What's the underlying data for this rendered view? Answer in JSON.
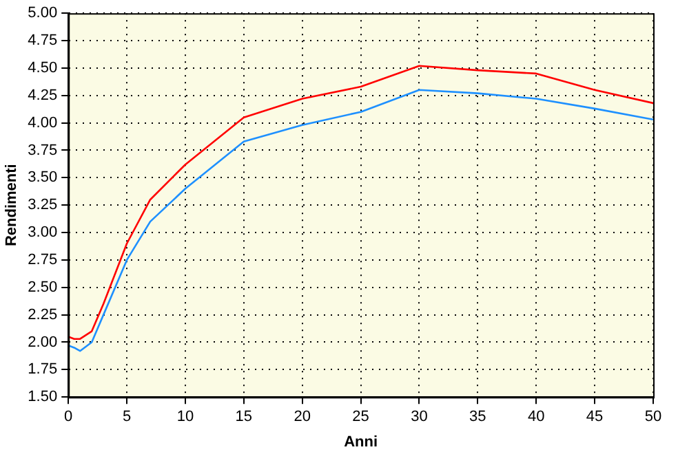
{
  "chart_data": {
    "type": "line",
    "xlabel": "Anni",
    "ylabel": "Rendimenti",
    "x": [
      0,
      0.5,
      1,
      2,
      3,
      5,
      7,
      10,
      15,
      20,
      25,
      30,
      35,
      40,
      45,
      50
    ],
    "series": [
      {
        "color": "#ff0000",
        "values": [
          2.05,
          2.03,
          2.03,
          2.1,
          2.35,
          2.9,
          3.3,
          3.62,
          4.05,
          4.22,
          4.33,
          4.52,
          4.48,
          4.45,
          4.3,
          4.18
        ]
      },
      {
        "color": "#1e90ff",
        "values": [
          1.97,
          1.95,
          1.92,
          2.0,
          2.25,
          2.75,
          3.1,
          3.4,
          3.83,
          3.98,
          4.1,
          4.3,
          4.27,
          4.22,
          4.13,
          4.03
        ]
      }
    ],
    "xlim": [
      0,
      50
    ],
    "xticks": [
      0,
      5,
      10,
      15,
      20,
      25,
      30,
      35,
      40,
      45,
      50
    ],
    "ylim": [
      1.5,
      5
    ],
    "yticks": [
      {
        "value": 1.5,
        "label": "1.50"
      },
      1.75,
      {
        "value": 2,
        "label": "2.00"
      },
      2.25,
      {
        "value": 2.5,
        "label": "2.50"
      },
      2.75,
      {
        "value": 3,
        "label": "3.00"
      },
      3.25,
      {
        "value": 3.5,
        "label": "3.50"
      },
      3.75,
      {
        "value": 4,
        "label": "4.00"
      },
      4.25,
      {
        "value": 4.5,
        "label": "4.50"
      },
      4.75,
      {
        "value": 5,
        "label": "5.00"
      }
    ],
    "grid": true,
    "legend": false,
    "marker": "none",
    "line_style": "solid"
  }
}
